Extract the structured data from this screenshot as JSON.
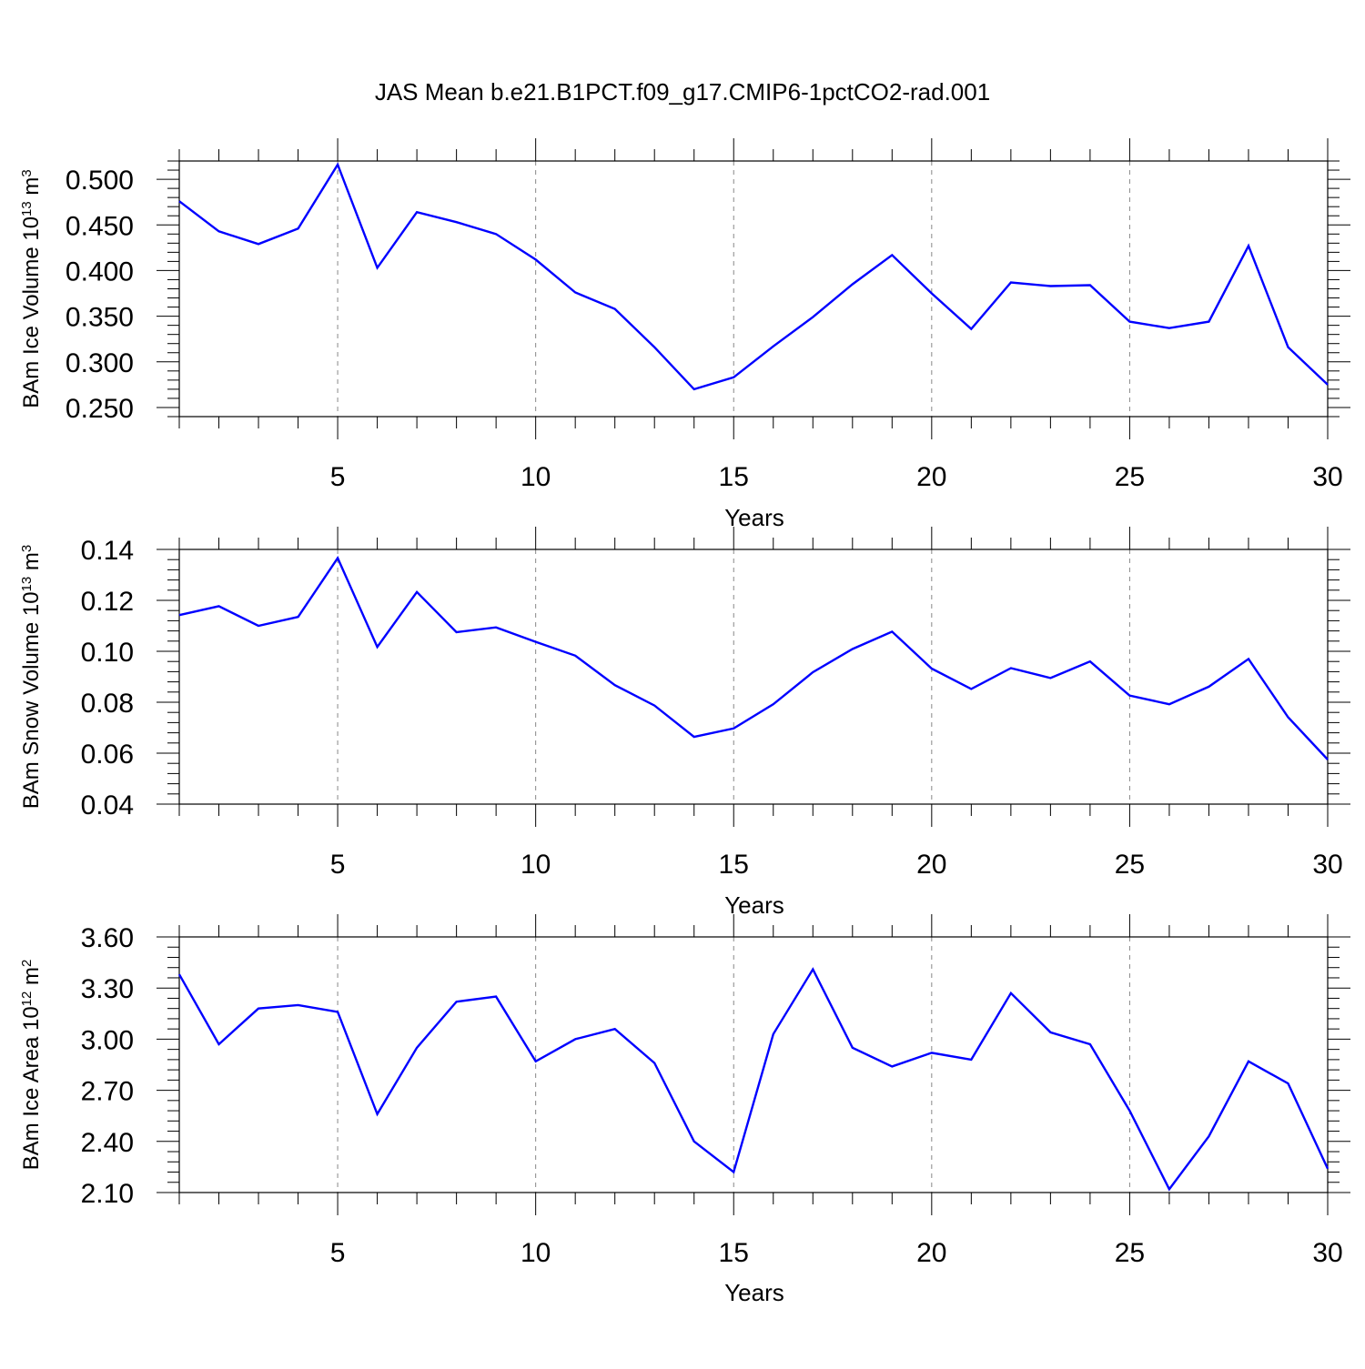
{
  "title": "JAS Mean b.e21.B1PCT.f09_g17.CMIP6-1pctCO2-rad.001",
  "colors": {
    "line": "#0000ff",
    "axis": "#000000",
    "grid": "#888888"
  },
  "chart_data": [
    {
      "type": "line",
      "ylabel_main": "BAm Ice Volume 10",
      "ylabel_exp": "13",
      "ylabel_unit": " m",
      "ylabel_unit_exp": "3",
      "xlabel": "Years",
      "xlim": [
        1,
        30
      ],
      "ylim": [
        0.24,
        0.52
      ],
      "xticks": [
        5,
        10,
        15,
        20,
        25,
        30
      ],
      "yticks": [
        0.25,
        0.3,
        0.35,
        0.4,
        0.45,
        0.5
      ],
      "ytick_labels": [
        "0.250",
        "0.300",
        "0.350",
        "0.400",
        "0.450",
        "0.500"
      ],
      "yminor_step": 0.01,
      "grid": "vertical dashed at major x ticks",
      "x": [
        1,
        2,
        3,
        4,
        5,
        6,
        7,
        8,
        9,
        10,
        11,
        12,
        13,
        14,
        15,
        16,
        17,
        18,
        19,
        20,
        21,
        22,
        23,
        24,
        25,
        26,
        27,
        28,
        29,
        30
      ],
      "values": [
        0.476,
        0.443,
        0.429,
        0.446,
        0.516,
        0.403,
        0.464,
        0.453,
        0.44,
        0.412,
        0.376,
        0.358,
        0.316,
        0.27,
        0.283,
        0.317,
        0.349,
        0.385,
        0.417,
        0.375,
        0.336,
        0.387,
        0.383,
        0.384,
        0.344,
        0.337,
        0.344,
        0.427,
        0.316,
        0.275
      ]
    },
    {
      "type": "line",
      "ylabel_main": "BAm Snow Volume 10",
      "ylabel_exp": "13",
      "ylabel_unit": " m",
      "ylabel_unit_exp": "3",
      "xlabel": "Years",
      "xlim": [
        1,
        30
      ],
      "ylim": [
        0.04,
        0.14
      ],
      "xticks": [
        5,
        10,
        15,
        20,
        25,
        30
      ],
      "yticks": [
        0.04,
        0.06,
        0.08,
        0.1,
        0.12,
        0.14
      ],
      "ytick_labels": [
        "0.04",
        "0.06",
        "0.08",
        "0.10",
        "0.12",
        "0.14"
      ],
      "yminor_step": 0.004,
      "grid": "vertical dashed at major x ticks",
      "x": [
        1,
        2,
        3,
        4,
        5,
        6,
        7,
        8,
        9,
        10,
        11,
        12,
        13,
        14,
        15,
        16,
        17,
        18,
        19,
        20,
        21,
        22,
        23,
        24,
        25,
        26,
        27,
        28,
        29,
        30
      ],
      "values": [
        0.1142,
        0.1177,
        0.11,
        0.1135,
        0.1366,
        0.1017,
        0.1233,
        0.1075,
        0.1094,
        0.1037,
        0.0983,
        0.0867,
        0.0787,
        0.0664,
        0.0697,
        0.0792,
        0.0918,
        0.1009,
        0.1077,
        0.0932,
        0.0852,
        0.0934,
        0.0895,
        0.096,
        0.0826,
        0.0792,
        0.0861,
        0.097,
        0.0741,
        0.0575
      ]
    },
    {
      "type": "line",
      "ylabel_main": "BAm Ice Area 10",
      "ylabel_exp": "12",
      "ylabel_unit": " m",
      "ylabel_unit_exp": "2",
      "xlabel": "Years",
      "xlim": [
        1,
        30
      ],
      "ylim": [
        2.1,
        3.6
      ],
      "xticks": [
        5,
        10,
        15,
        20,
        25,
        30
      ],
      "yticks": [
        2.1,
        2.4,
        2.7,
        3.0,
        3.3,
        3.6
      ],
      "ytick_labels": [
        "2.10",
        "2.40",
        "2.70",
        "3.00",
        "3.30",
        "3.60"
      ],
      "yminor_step": 0.06,
      "grid": "vertical dashed at major x ticks",
      "x": [
        1,
        2,
        3,
        4,
        5,
        6,
        7,
        8,
        9,
        10,
        11,
        12,
        13,
        14,
        15,
        16,
        17,
        18,
        19,
        20,
        21,
        22,
        23,
        24,
        25,
        26,
        27,
        28,
        29,
        30
      ],
      "values": [
        3.38,
        2.97,
        3.18,
        3.2,
        3.16,
        2.56,
        2.95,
        3.22,
        3.25,
        2.87,
        3.0,
        3.06,
        2.86,
        2.4,
        2.22,
        3.03,
        3.41,
        2.95,
        2.84,
        2.92,
        2.88,
        3.27,
        3.04,
        2.97,
        2.58,
        2.12,
        2.43,
        2.87,
        2.74,
        2.24
      ]
    }
  ]
}
